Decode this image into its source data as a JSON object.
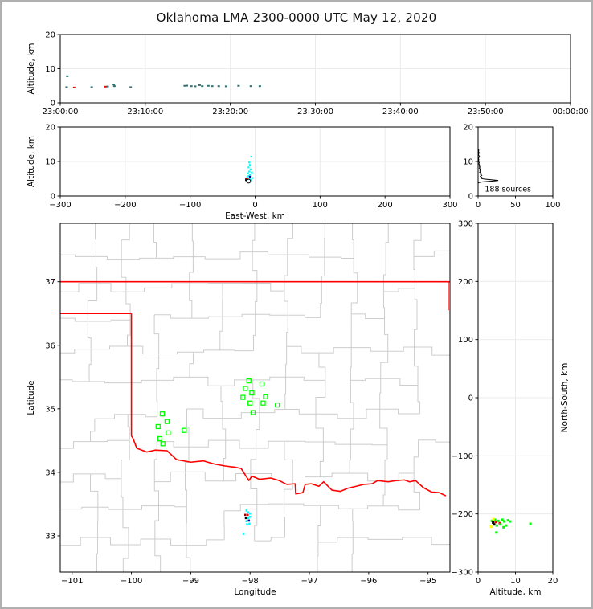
{
  "title": "Oklahoma LMA 2300-0000 UTC May 12, 2020",
  "colors": {
    "teal": "#2f7070",
    "cyan": "#00ffff",
    "green": "#00ff00",
    "red": "#ff0000",
    "darkred": "#990000",
    "navy": "#000099",
    "yellow": "#ffff00",
    "black": "#000000",
    "county": "#cdcdcd",
    "state_border": "#ff0000",
    "grid": "#ebebeb",
    "spine": "#000000",
    "frame": "#b0b0b0"
  },
  "chart_data": [
    {
      "id": "time_height",
      "type": "scatter",
      "xlabel": "",
      "ylabel": "Altitude, km",
      "xlim": [
        0,
        3600
      ],
      "ylim": [
        0,
        20
      ],
      "xticks": {
        "values": [
          0,
          600,
          1200,
          1800,
          2400,
          3000,
          3600
        ],
        "labels": [
          "23:00:00",
          "23:10:00",
          "23:20:00",
          "23:30:00",
          "23:40:00",
          "23:50:00",
          "00:00:00"
        ]
      },
      "yticks": {
        "values": [
          0,
          10,
          20
        ],
        "labels": [
          "0",
          "10",
          "20"
        ]
      },
      "grid": true,
      "points": [
        [
          50,
          7.8,
          "teal"
        ],
        [
          45,
          4.6,
          "teal"
        ],
        [
          98,
          4.5,
          "red"
        ],
        [
          222,
          4.6,
          "teal"
        ],
        [
          318,
          4.75,
          "red"
        ],
        [
          334,
          4.8,
          "teal"
        ],
        [
          378,
          5.35,
          "teal"
        ],
        [
          382,
          4.9,
          "teal"
        ],
        [
          497,
          4.6,
          "teal"
        ],
        [
          878,
          5.0,
          "teal"
        ],
        [
          893,
          5.05,
          "teal"
        ],
        [
          925,
          4.9,
          "teal"
        ],
        [
          952,
          4.85,
          "teal"
        ],
        [
          983,
          5.2,
          "teal"
        ],
        [
          1002,
          4.9,
          "teal"
        ],
        [
          1045,
          5.0,
          "teal"
        ],
        [
          1072,
          4.9,
          "teal"
        ],
        [
          1118,
          4.9,
          "teal"
        ],
        [
          1170,
          4.85,
          "teal"
        ],
        [
          1258,
          5.0,
          "teal"
        ],
        [
          1345,
          4.9,
          "teal"
        ],
        [
          1408,
          4.9,
          "teal"
        ]
      ]
    },
    {
      "id": "ew_height",
      "type": "scatter",
      "xlabel": "East-West, km",
      "ylabel": "Altitude, km",
      "xlim": [
        -300,
        300
      ],
      "ylim": [
        0,
        20
      ],
      "xticks": {
        "values": [
          -300,
          -200,
          -100,
          0,
          100,
          200,
          300
        ],
        "labels": [
          "−300",
          "−200",
          "−100",
          "0",
          "100",
          "200",
          "300"
        ]
      },
      "yticks": {
        "values": [
          0,
          10,
          20
        ],
        "labels": [
          "0",
          "10",
          "20"
        ]
      },
      "grid": true,
      "points": [
        [
          -6,
          11.4,
          "cyan"
        ],
        [
          -9,
          9.7,
          "cyan"
        ],
        [
          -8,
          9.0,
          "cyan"
        ],
        [
          -10,
          8.3,
          "cyan"
        ],
        [
          -7,
          7.7,
          "cyan"
        ],
        [
          -9,
          7.1,
          "cyan"
        ],
        [
          -11,
          6.6,
          "cyan"
        ],
        [
          -5,
          6.8,
          "cyan"
        ],
        [
          -8,
          6.2,
          "cyan"
        ],
        [
          -10,
          5.8,
          "cyan"
        ],
        [
          -12,
          5.4,
          "cyan"
        ],
        [
          -9,
          5.0,
          "cyan"
        ],
        [
          -7,
          4.7,
          "cyan"
        ],
        [
          -13,
          4.5,
          "cyan"
        ],
        [
          -4,
          5.2,
          "cyan"
        ],
        [
          -8,
          5.6,
          "navy"
        ],
        [
          -12,
          4.9,
          "red"
        ],
        [
          -9,
          4.35,
          "red"
        ],
        [
          -14,
          5.1,
          "darkred"
        ],
        [
          -14,
          4.6,
          "black"
        ],
        [
          -11,
          4.1,
          "black"
        ]
      ],
      "open_circles": [
        [
          -10,
          4.3
        ]
      ]
    },
    {
      "id": "alt_histogram",
      "type": "line",
      "xlabel": "",
      "ylabel": "",
      "xlim": [
        0,
        100
      ],
      "ylim": [
        0,
        20
      ],
      "xticks": {
        "values": [
          0,
          50,
          100
        ],
        "labels": [
          "0",
          "50",
          "100"
        ]
      },
      "yticks": {
        "values": [
          0,
          10,
          20
        ],
        "labels": [
          "0",
          "10",
          "20"
        ]
      },
      "grid": true,
      "annotation": {
        "text": "188 sources",
        "x": 9,
        "y": 1.3
      },
      "profile": [
        [
          0,
          0
        ],
        [
          0,
          3.7
        ],
        [
          1,
          3.9
        ],
        [
          6,
          4.1
        ],
        [
          23,
          4.4
        ],
        [
          27,
          4.5
        ],
        [
          8,
          4.9
        ],
        [
          4,
          5.1
        ],
        [
          5,
          5.4
        ],
        [
          3,
          5.7
        ],
        [
          5,
          6.0
        ],
        [
          3,
          6.3
        ],
        [
          4,
          6.6
        ],
        [
          2,
          6.9
        ],
        [
          3.5,
          7.2
        ],
        [
          2,
          7.5
        ],
        [
          3,
          7.8
        ],
        [
          1.5,
          8.1
        ],
        [
          2.5,
          8.4
        ],
        [
          1,
          8.7
        ],
        [
          2,
          9.0
        ],
        [
          1,
          9.3
        ],
        [
          1.5,
          9.7
        ],
        [
          0.5,
          10.1
        ],
        [
          1,
          10.5
        ],
        [
          0.5,
          11.0
        ],
        [
          2,
          11.4
        ],
        [
          1,
          11.7
        ],
        [
          0.5,
          12.1
        ],
        [
          1.5,
          12.5
        ],
        [
          0.5,
          12.9
        ],
        [
          1,
          13.3
        ],
        [
          0,
          13.6
        ],
        [
          0,
          20
        ]
      ]
    },
    {
      "id": "map",
      "type": "scatter",
      "xlabel": "Longitude",
      "ylabel": "Latitude",
      "xlim": [
        -101.2,
        -94.63
      ],
      "ylim": [
        32.43,
        37.92
      ],
      "xticks": {
        "values": [
          -101,
          -100,
          -99,
          -98,
          -97,
          -96,
          -95
        ],
        "labels": [
          "−101",
          "−100",
          "−99",
          "−98",
          "−97",
          "−96",
          "−95"
        ]
      },
      "yticks": {
        "values": [
          33,
          34,
          35,
          36,
          37
        ],
        "labels": [
          "33",
          "34",
          "35",
          "36",
          "37"
        ]
      },
      "grid": false,
      "state_border": [
        [
          [
            -101.2,
            37.0
          ],
          [
            -94.63,
            37.0
          ]
        ],
        [
          [
            -94.66,
            37.0
          ],
          [
            -94.66,
            36.55
          ]
        ],
        [
          [
            -101.2,
            36.5
          ],
          [
            -100.0,
            36.5
          ]
        ],
        [
          [
            -100.0,
            36.5
          ],
          [
            -100.0,
            34.57
          ]
        ]
      ],
      "river": [
        [
          -100.0,
          34.57
        ],
        [
          -99.98,
          34.55
        ],
        [
          -99.91,
          34.38
        ],
        [
          -99.74,
          34.32
        ],
        [
          -99.6,
          34.35
        ],
        [
          -99.4,
          34.34
        ],
        [
          -99.24,
          34.2
        ],
        [
          -99.0,
          34.16
        ],
        [
          -98.79,
          34.18
        ],
        [
          -98.6,
          34.13
        ],
        [
          -98.42,
          34.1
        ],
        [
          -98.25,
          34.08
        ],
        [
          -98.15,
          34.06
        ],
        [
          -98.02,
          33.87
        ],
        [
          -97.97,
          33.94
        ],
        [
          -97.84,
          33.89
        ],
        [
          -97.65,
          33.91
        ],
        [
          -97.51,
          33.87
        ],
        [
          -97.38,
          33.81
        ],
        [
          -97.24,
          33.82
        ],
        [
          -97.23,
          33.66
        ],
        [
          -97.11,
          33.68
        ],
        [
          -97.07,
          33.81
        ],
        [
          -96.97,
          33.82
        ],
        [
          -96.84,
          33.78
        ],
        [
          -96.76,
          33.85
        ],
        [
          -96.62,
          33.72
        ],
        [
          -96.48,
          33.7
        ],
        [
          -96.35,
          33.75
        ],
        [
          -96.21,
          33.78
        ],
        [
          -96.08,
          33.81
        ],
        [
          -95.94,
          33.82
        ],
        [
          -95.85,
          33.87
        ],
        [
          -95.67,
          33.85
        ],
        [
          -95.54,
          33.87
        ],
        [
          -95.4,
          33.88
        ],
        [
          -95.31,
          33.85
        ],
        [
          -95.21,
          33.87
        ],
        [
          -95.08,
          33.76
        ],
        [
          -94.94,
          33.69
        ],
        [
          -94.81,
          33.68
        ],
        [
          -94.7,
          33.63
        ]
      ],
      "stations": [
        [
          -99.48,
          34.92
        ],
        [
          -99.4,
          34.8
        ],
        [
          -99.55,
          34.72
        ],
        [
          -99.38,
          34.62
        ],
        [
          -99.11,
          34.66
        ],
        [
          -99.52,
          34.53
        ],
        [
          -99.47,
          34.45
        ],
        [
          -98.02,
          35.44
        ],
        [
          -97.8,
          35.39
        ],
        [
          -98.08,
          35.32
        ],
        [
          -97.97,
          35.25
        ],
        [
          -98.12,
          35.18
        ],
        [
          -97.74,
          35.19
        ],
        [
          -98.0,
          35.09
        ],
        [
          -97.78,
          35.09
        ],
        [
          -97.54,
          35.06
        ],
        [
          -97.95,
          34.94
        ]
      ],
      "points": [
        [
          -98.06,
          33.4,
          "cyan"
        ],
        [
          -98.03,
          33.37,
          "cyan"
        ],
        [
          -98.08,
          33.33,
          "darkred"
        ],
        [
          -98.04,
          33.33,
          "red"
        ],
        [
          -98.0,
          33.35,
          "cyan"
        ],
        [
          -98.07,
          33.28,
          "black"
        ],
        [
          -98.03,
          33.28,
          "cyan"
        ],
        [
          -98.0,
          33.3,
          "cyan"
        ],
        [
          -98.06,
          33.23,
          "cyan"
        ],
        [
          -98.02,
          33.24,
          "navy"
        ],
        [
          -98.05,
          33.18,
          "cyan"
        ],
        [
          -98.01,
          33.19,
          "cyan"
        ],
        [
          -98.11,
          33.03,
          "cyan"
        ]
      ]
    },
    {
      "id": "ns_height",
      "type": "scatter",
      "xlabel": "Altitude, km",
      "ylabel": "North-South, km",
      "ylabel_side": "right",
      "xlim": [
        0,
        20
      ],
      "ylim": [
        -300,
        300
      ],
      "xticks": {
        "values": [
          0,
          10,
          20
        ],
        "labels": [
          "0",
          "10",
          "20"
        ]
      },
      "yticks": {
        "values": [
          -300,
          -200,
          -100,
          0,
          100,
          200,
          300
        ],
        "labels": [
          "−300",
          "−200",
          "−100",
          "0",
          "100",
          "200",
          "300"
        ]
      },
      "grid": true,
      "points": [
        [
          3.7,
          -212,
          "green"
        ],
        [
          4.5,
          -210,
          "green"
        ],
        [
          4.0,
          -215,
          "black"
        ],
        [
          4.3,
          -218,
          "black"
        ],
        [
          3.5,
          -222,
          "yellow"
        ],
        [
          4.1,
          -209,
          "yellow"
        ],
        [
          4.7,
          -214,
          "red"
        ],
        [
          5.8,
          -216,
          "red"
        ],
        [
          5.0,
          -220,
          "green"
        ],
        [
          5.4,
          -212,
          "green"
        ],
        [
          6.5,
          -210,
          "green"
        ],
        [
          6.0,
          -218,
          "green"
        ],
        [
          7.0,
          -213,
          "green"
        ],
        [
          8.0,
          -211,
          "green"
        ],
        [
          8.6,
          -213,
          "green"
        ],
        [
          7.5,
          -220,
          "green"
        ],
        [
          6.8,
          -223,
          "green"
        ],
        [
          4.9,
          -232,
          "green"
        ],
        [
          14.0,
          -217,
          "green"
        ]
      ]
    }
  ]
}
